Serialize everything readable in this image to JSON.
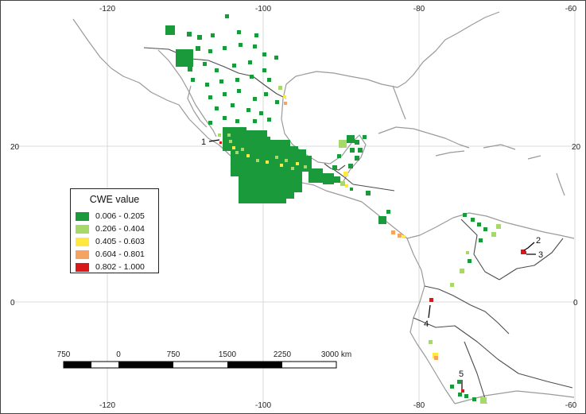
{
  "map": {
    "lon_ticks": [
      "-120",
      "-100",
      "-80",
      "-60"
    ],
    "lat_ticks": [
      "20",
      "0"
    ],
    "grid": true
  },
  "legend": {
    "title": "CWE value",
    "items": [
      {
        "label": "0.006 - 0.205",
        "color": "#1a9a3a"
      },
      {
        "label": "0.206 - 0.404",
        "color": "#a6d96a"
      },
      {
        "label": "0.405 - 0.603",
        "color": "#ffe840"
      },
      {
        "label": "0.604 - 0.801",
        "color": "#f4a460"
      },
      {
        "label": "0.802 - 1.000",
        "color": "#d7191c"
      }
    ]
  },
  "scale_bar": {
    "labels": [
      "750",
      "0",
      "750",
      "1500",
      "2250",
      "3000 km"
    ]
  },
  "callouts": [
    "1",
    "2",
    "3",
    "4",
    "5"
  ]
}
